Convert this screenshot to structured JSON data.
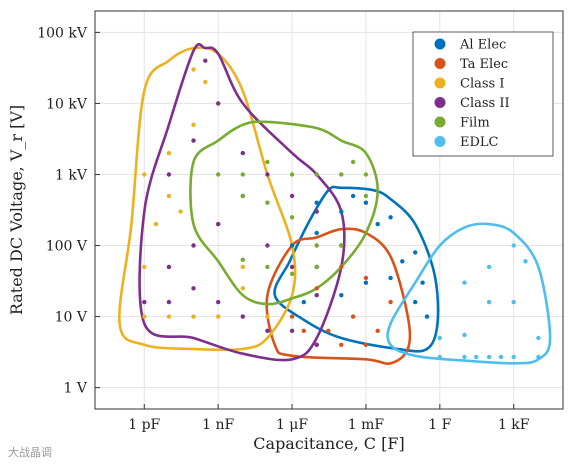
{
  "chart_data": {
    "type": "scatter",
    "xlabel": "Capacitance, C [F]",
    "ylabel": "Rated DC Voltage, V_r [V]",
    "x_scale": "log",
    "y_scale": "log",
    "xlim": [
      1e-14,
      100000.0
    ],
    "ylim": [
      0.5,
      200000
    ],
    "x_ticks": [
      {
        "value": 1e-12,
        "label": "1 pF"
      },
      {
        "value": 1e-09,
        "label": "1 nF"
      },
      {
        "value": 1e-06,
        "label": "1 μF"
      },
      {
        "value": 0.001,
        "label": "1 mF"
      },
      {
        "value": 1,
        "label": "1 F"
      },
      {
        "value": 1000.0,
        "label": "1 kF"
      }
    ],
    "y_ticks": [
      {
        "value": 1,
        "label": "1 V"
      },
      {
        "value": 10,
        "label": "10 V"
      },
      {
        "value": 100,
        "label": "100 V"
      },
      {
        "value": 1000,
        "label": "1 kV"
      },
      {
        "value": 10000,
        "label": "10 kV"
      },
      {
        "value": 100000,
        "label": "100 kV"
      }
    ],
    "grid": true,
    "legend_position": "top-right",
    "series": [
      {
        "name": "Al Elec",
        "color": "#0072BD",
        "boundary": [
          [
            3e-05,
            600
          ],
          [
            0.0001,
            650
          ],
          [
            0.002,
            600
          ],
          [
            0.01,
            450
          ],
          [
            0.1,
            200
          ],
          [
            0.6,
            40
          ],
          [
            0.8,
            8
          ],
          [
            0.3,
            3.5
          ],
          [
            0.02,
            3.5
          ],
          [
            0.0001,
            5
          ],
          [
            3e-06,
            9
          ],
          [
            2e-07,
            20
          ],
          [
            8e-07,
            60
          ],
          [
            5e-06,
            220
          ]
        ],
        "points": [
          [
            1e-06,
            100
          ],
          [
            1e-05,
            150
          ],
          [
            0.0001,
            300
          ],
          [
            0.001,
            400
          ],
          [
            0.01,
            250
          ],
          [
            0.1,
            80
          ],
          [
            1e-05,
            50
          ],
          [
            0.0001,
            20
          ],
          [
            0.001,
            30
          ],
          [
            0.01,
            35
          ],
          [
            0.1,
            16
          ],
          [
            0.3,
            10
          ],
          [
            1e-05,
            400
          ],
          [
            0.0003,
            500
          ],
          [
            0.003,
            200
          ],
          [
            0.03,
            60
          ],
          [
            0.2,
            30
          ],
          [
            3e-06,
            16
          ]
        ]
      },
      {
        "name": "Ta Elec",
        "color": "#D95319",
        "boundary": [
          [
            1e-06,
            100
          ],
          [
            1e-05,
            130
          ],
          [
            0.0001,
            170
          ],
          [
            0.001,
            150
          ],
          [
            0.01,
            70
          ],
          [
            0.05,
            10
          ],
          [
            0.05,
            3.5
          ],
          [
            0.01,
            2.2
          ],
          [
            0.001,
            2.5
          ],
          [
            1e-06,
            2.8
          ],
          [
            2e-07,
            4
          ],
          [
            1e-07,
            20
          ]
        ],
        "points": [
          [
            1e-06,
            10
          ],
          [
            1e-05,
            25
          ],
          [
            0.0001,
            50
          ],
          [
            0.001,
            35
          ],
          [
            0.01,
            16
          ],
          [
            3e-06,
            6.3
          ],
          [
            3e-05,
            6.3
          ],
          [
            0.0003,
            10
          ],
          [
            0.003,
            6.3
          ],
          [
            1e-05,
            100
          ],
          [
            0.0001,
            100
          ],
          [
            1e-05,
            4
          ],
          [
            0.0001,
            4
          ],
          [
            0.001,
            4
          ]
        ]
      },
      {
        "name": "Class I",
        "color": "#EDB120",
        "boundary": [
          [
            1e-12,
            15000
          ],
          [
            1e-11,
            40000
          ],
          [
            1e-10,
            60000
          ],
          [
            1e-09,
            50000
          ],
          [
            1e-08,
            15000
          ],
          [
            1e-07,
            1000
          ],
          [
            1e-06,
            100
          ],
          [
            1e-06,
            20
          ],
          [
            1e-07,
            5
          ],
          [
            1e-08,
            3.5
          ],
          [
            1e-10,
            3.5
          ],
          [
            1e-12,
            4
          ],
          [
            1e-13,
            8
          ],
          [
            3e-13,
            200
          ]
        ],
        "points": [
          [
            1e-12,
            50
          ],
          [
            1e-11,
            50
          ],
          [
            1e-10,
            100
          ],
          [
            1e-09,
            200
          ],
          [
            1e-08,
            50
          ],
          [
            1e-07,
            10
          ],
          [
            1e-12,
            1000
          ],
          [
            1e-11,
            2000
          ],
          [
            1e-10,
            5000
          ],
          [
            1e-09,
            10000
          ],
          [
            1e-10,
            30000
          ],
          [
            1e-11,
            500
          ],
          [
            1e-12,
            10
          ],
          [
            1e-11,
            10
          ],
          [
            1e-10,
            10
          ],
          [
            1e-09,
            10
          ],
          [
            1e-08,
            25
          ],
          [
            3e-12,
            200
          ],
          [
            3e-11,
            300
          ],
          [
            3e-10,
            20000
          ]
        ]
      },
      {
        "name": "Class II",
        "color": "#7E2F8E",
        "boundary": [
          [
            1e-10,
            55000
          ],
          [
            3e-10,
            60000
          ],
          [
            1e-09,
            50000
          ],
          [
            1e-08,
            10000
          ],
          [
            1e-06,
            2000
          ],
          [
            1e-05,
            1000
          ],
          [
            0.0001,
            300
          ],
          [
            0.0001,
            50
          ],
          [
            1e-05,
            5
          ],
          [
            1e-06,
            2.5
          ],
          [
            1e-08,
            3
          ],
          [
            1e-10,
            5
          ],
          [
            1e-12,
            8
          ],
          [
            1e-12,
            300
          ],
          [
            1e-11,
            5000
          ]
        ],
        "points": [
          [
            1e-11,
            50
          ],
          [
            1e-10,
            100
          ],
          [
            1e-09,
            200
          ],
          [
            1e-08,
            500
          ],
          [
            1e-07,
            100
          ],
          [
            1e-06,
            50
          ],
          [
            1e-05,
            20
          ],
          [
            1e-12,
            16
          ],
          [
            1e-11,
            16
          ],
          [
            1e-10,
            25
          ],
          [
            1e-09,
            16
          ],
          [
            1e-08,
            10
          ],
          [
            1e-07,
            6.3
          ],
          [
            1e-06,
            6.3
          ],
          [
            1e-05,
            4
          ],
          [
            1e-11,
            1000
          ],
          [
            1e-10,
            3000
          ],
          [
            1e-09,
            10000
          ],
          [
            3e-10,
            40000
          ],
          [
            1e-08,
            2000
          ],
          [
            1e-07,
            1000
          ],
          [
            1e-06,
            500
          ],
          [
            1e-05,
            300
          ]
        ]
      },
      {
        "name": "Film",
        "color": "#77AC30",
        "boundary": [
          [
            1e-10,
            1500
          ],
          [
            1e-09,
            3000
          ],
          [
            1e-08,
            5000
          ],
          [
            1e-07,
            5500
          ],
          [
            1e-05,
            4500
          ],
          [
            0.0001,
            3000
          ],
          [
            0.001,
            2000
          ],
          [
            0.003,
            600
          ],
          [
            0.001,
            150
          ],
          [
            0.0001,
            50
          ],
          [
            1e-05,
            25
          ],
          [
            1e-06,
            18
          ],
          [
            1e-07,
            15
          ],
          [
            1e-08,
            20
          ],
          [
            1e-09,
            60
          ],
          [
            1e-10,
            200
          ]
        ],
        "points": [
          [
            1e-09,
            1000
          ],
          [
            1e-08,
            1000
          ],
          [
            1e-07,
            1500
          ],
          [
            1e-06,
            1000
          ],
          [
            1e-05,
            1000
          ],
          [
            0.0001,
            1000
          ],
          [
            0.001,
            1000
          ],
          [
            1e-08,
            500
          ],
          [
            1e-07,
            400
          ],
          [
            1e-06,
            250
          ],
          [
            1e-05,
            100
          ],
          [
            0.0001,
            100
          ],
          [
            1e-08,
            63
          ],
          [
            1e-07,
            50
          ],
          [
            1e-06,
            40
          ],
          [
            1e-05,
            50
          ],
          [
            0.001,
            500
          ],
          [
            0.0003,
            1500
          ]
        ]
      },
      {
        "name": "EDLC",
        "color": "#4DBEEE",
        "boundary": [
          [
            1,
            100
          ],
          [
            10,
            180
          ],
          [
            100,
            200
          ],
          [
            1000,
            150
          ],
          [
            10000.0,
            50
          ],
          [
            30000.0,
            5
          ],
          [
            10000.0,
            2.5
          ],
          [
            1000,
            2.2
          ],
          [
            10,
            2.4
          ],
          [
            0.1,
            2.8
          ],
          [
            0.01,
            4
          ],
          [
            0.01,
            8
          ],
          [
            0.1,
            30
          ]
        ],
        "points": [
          [
            1,
            2.7
          ],
          [
            10,
            2.7
          ],
          [
            100,
            2.7
          ],
          [
            1000,
            2.7
          ],
          [
            10000.0,
            2.7
          ],
          [
            1,
            5
          ],
          [
            10,
            5.5
          ],
          [
            100,
            16
          ],
          [
            1000,
            16
          ],
          [
            100,
            50
          ],
          [
            1000,
            100
          ],
          [
            10,
            30
          ],
          [
            10000.0,
            5
          ],
          [
            3000,
            60
          ],
          [
            30,
            2.7
          ],
          [
            300,
            2.7
          ]
        ]
      }
    ]
  },
  "watermark": "大战晶调"
}
